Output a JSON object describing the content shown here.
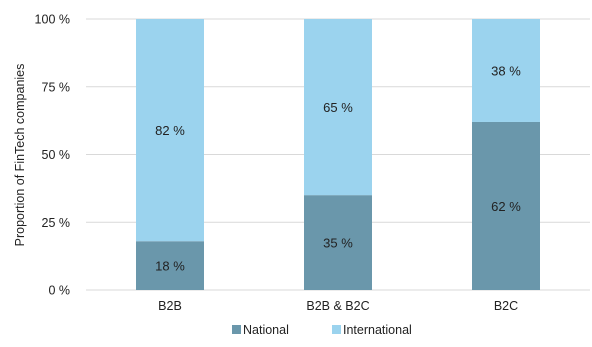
{
  "chart_data": {
    "type": "bar",
    "stacked": true,
    "categories": [
      "B2B",
      "B2B & B2C",
      "B2C"
    ],
    "series": [
      {
        "name": "National",
        "values": [
          18,
          35,
          62
        ],
        "labels": [
          "18 %",
          "35 %",
          "62 %"
        ],
        "color": "#6a97ab"
      },
      {
        "name": "International",
        "values": [
          82,
          65,
          38
        ],
        "labels": [
          "82 %",
          "65 %",
          "38 %"
        ],
        "color": "#9bd3ee"
      }
    ],
    "ylabel": "Proportion of FinTech companies",
    "ylim": [
      0,
      100
    ],
    "yticks": [
      0,
      25,
      50,
      75,
      100
    ],
    "ytick_labels": [
      "0 %",
      "25 %",
      "50 %",
      "75 %",
      "100 %"
    ],
    "grid": true,
    "legend_position": "bottom",
    "colors": {
      "grid": "#d9d9d9",
      "text": "#222222"
    }
  }
}
